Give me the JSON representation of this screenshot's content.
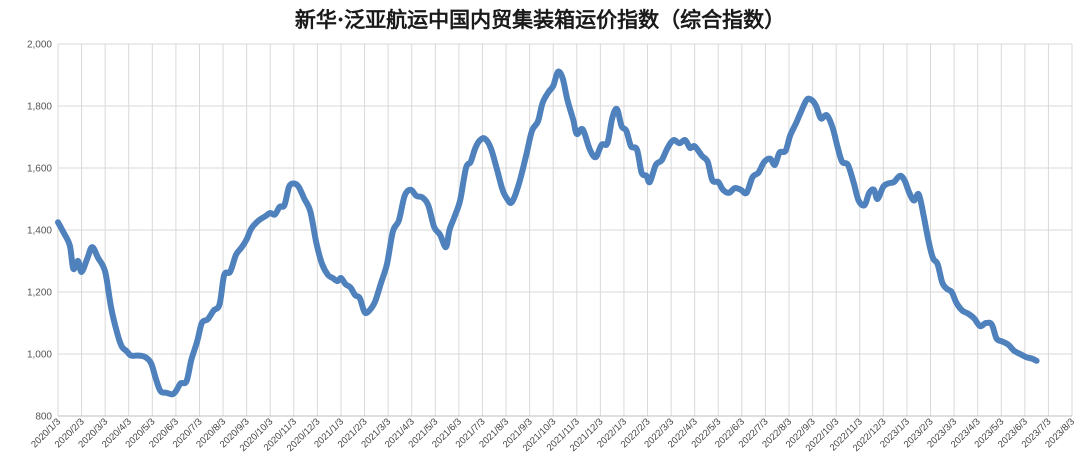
{
  "chart_data": {
    "type": "line",
    "title": "新华·泛亚航运中国内贸集装箱运价指数（综合指数）",
    "xlabel": "",
    "ylabel": "",
    "ylim": [
      800,
      2000
    ],
    "yticks": [
      "800",
      "1,000",
      "1,200",
      "1,400",
      "1,600",
      "1,800",
      "2,000"
    ],
    "grid": true,
    "legend": "none",
    "line_color": "#4F81BD",
    "categories": [
      "2020/1/3",
      "2020/2/3",
      "2020/3/3",
      "2020/4/3",
      "2020/5/3",
      "2020/6/3",
      "2020/7/3",
      "2020/8/3",
      "2020/9/3",
      "2020/10/3",
      "2020/11/3",
      "2020/12/3",
      "2021/1/3",
      "2021/2/3",
      "2021/3/3",
      "2021/4/3",
      "2021/5/3",
      "2021/6/3",
      "2021/7/3",
      "2021/8/3",
      "2021/9/3",
      "2021/10/3",
      "2021/11/3",
      "2021/12/3",
      "2022/1/3",
      "2022/2/3",
      "2022/3/3",
      "2022/4/3",
      "2022/5/3",
      "2022/6/3",
      "2022/7/3",
      "2022/8/3",
      "2022/9/3",
      "2022/10/3",
      "2022/11/3",
      "2022/12/3",
      "2023/1/3",
      "2023/2/3",
      "2023/3/3",
      "2023/4/3",
      "2023/5/3",
      "2023/6/3",
      "2023/7/3",
      "2023/8/3"
    ],
    "series": [
      {
        "values": [
          [
            0,
            1425
          ],
          [
            0.25,
            1390
          ],
          [
            0.5,
            1350
          ],
          [
            0.65,
            1275
          ],
          [
            0.85,
            1300
          ],
          [
            1.0,
            1265
          ],
          [
            1.25,
            1310
          ],
          [
            1.45,
            1345
          ],
          [
            1.7,
            1310
          ],
          [
            2.0,
            1265
          ],
          [
            2.25,
            1150
          ],
          [
            2.5,
            1070
          ],
          [
            2.7,
            1025
          ],
          [
            2.9,
            1010
          ],
          [
            3.1,
            995
          ],
          [
            3.4,
            995
          ],
          [
            3.7,
            990
          ],
          [
            3.95,
            970
          ],
          [
            4.15,
            920
          ],
          [
            4.35,
            880
          ],
          [
            4.6,
            875
          ],
          [
            4.85,
            870
          ],
          [
            5.0,
            880
          ],
          [
            5.2,
            905
          ],
          [
            5.45,
            912
          ],
          [
            5.65,
            980
          ],
          [
            5.9,
            1040
          ],
          [
            6.1,
            1100
          ],
          [
            6.35,
            1112
          ],
          [
            6.6,
            1140
          ],
          [
            6.85,
            1160
          ],
          [
            7.05,
            1255
          ],
          [
            7.3,
            1265
          ],
          [
            7.55,
            1320
          ],
          [
            7.8,
            1345
          ],
          [
            8.0,
            1370
          ],
          [
            8.2,
            1405
          ],
          [
            8.5,
            1430
          ],
          [
            8.8,
            1445
          ],
          [
            9.0,
            1455
          ],
          [
            9.2,
            1450
          ],
          [
            9.4,
            1475
          ],
          [
            9.6,
            1480
          ],
          [
            9.8,
            1540
          ],
          [
            10.0,
            1550
          ],
          [
            10.2,
            1540
          ],
          [
            10.45,
            1500
          ],
          [
            10.7,
            1460
          ],
          [
            10.95,
            1360
          ],
          [
            11.2,
            1290
          ],
          [
            11.45,
            1255
          ],
          [
            11.65,
            1245
          ],
          [
            11.85,
            1235
          ],
          [
            12.0,
            1245
          ],
          [
            12.2,
            1225
          ],
          [
            12.4,
            1215
          ],
          [
            12.6,
            1190
          ],
          [
            12.8,
            1180
          ],
          [
            13.0,
            1135
          ],
          [
            13.2,
            1140
          ],
          [
            13.45,
            1170
          ],
          [
            13.7,
            1230
          ],
          [
            13.95,
            1290
          ],
          [
            14.2,
            1395
          ],
          [
            14.45,
            1430
          ],
          [
            14.7,
            1510
          ],
          [
            14.95,
            1530
          ],
          [
            15.2,
            1510
          ],
          [
            15.45,
            1505
          ],
          [
            15.7,
            1480
          ],
          [
            15.95,
            1410
          ],
          [
            16.2,
            1385
          ],
          [
            16.45,
            1345
          ],
          [
            16.6,
            1400
          ],
          [
            16.8,
            1440
          ],
          [
            17.05,
            1495
          ],
          [
            17.3,
            1600
          ],
          [
            17.5,
            1620
          ],
          [
            17.7,
            1665
          ],
          [
            17.9,
            1690
          ],
          [
            18.1,
            1695
          ],
          [
            18.35,
            1665
          ],
          [
            18.6,
            1600
          ],
          [
            18.85,
            1530
          ],
          [
            19.05,
            1500
          ],
          [
            19.25,
            1490
          ],
          [
            19.55,
            1550
          ],
          [
            19.85,
            1640
          ],
          [
            20.1,
            1720
          ],
          [
            20.35,
            1750
          ],
          [
            20.55,
            1810
          ],
          [
            20.8,
            1845
          ],
          [
            21.0,
            1865
          ],
          [
            21.2,
            1910
          ],
          [
            21.4,
            1890
          ],
          [
            21.6,
            1820
          ],
          [
            21.85,
            1755
          ],
          [
            22.0,
            1710
          ],
          [
            22.25,
            1725
          ],
          [
            22.55,
            1660
          ],
          [
            22.8,
            1635
          ],
          [
            23.05,
            1675
          ],
          [
            23.3,
            1680
          ],
          [
            23.5,
            1760
          ],
          [
            23.7,
            1790
          ],
          [
            23.9,
            1735
          ],
          [
            24.1,
            1720
          ],
          [
            24.3,
            1670
          ],
          [
            24.55,
            1660
          ],
          [
            24.75,
            1585
          ],
          [
            24.95,
            1575
          ],
          [
            25.1,
            1555
          ],
          [
            25.35,
            1610
          ],
          [
            25.6,
            1625
          ],
          [
            25.85,
            1665
          ],
          [
            26.1,
            1690
          ],
          [
            26.35,
            1680
          ],
          [
            26.6,
            1690
          ],
          [
            26.8,
            1665
          ],
          [
            27.0,
            1670
          ],
          [
            27.3,
            1640
          ],
          [
            27.55,
            1620
          ],
          [
            27.75,
            1560
          ],
          [
            28.0,
            1555
          ],
          [
            28.2,
            1530
          ],
          [
            28.45,
            1520
          ],
          [
            28.7,
            1535
          ],
          [
            28.95,
            1530
          ],
          [
            29.2,
            1520
          ],
          [
            29.45,
            1570
          ],
          [
            29.7,
            1585
          ],
          [
            29.95,
            1620
          ],
          [
            30.2,
            1630
          ],
          [
            30.4,
            1610
          ],
          [
            30.6,
            1650
          ],
          [
            30.85,
            1655
          ],
          [
            31.05,
            1705
          ],
          [
            31.3,
            1745
          ],
          [
            31.5,
            1780
          ],
          [
            31.75,
            1820
          ],
          [
            31.95,
            1820
          ],
          [
            32.15,
            1800
          ],
          [
            32.35,
            1760
          ],
          [
            32.6,
            1770
          ],
          [
            32.85,
            1730
          ],
          [
            33.05,
            1670
          ],
          [
            33.25,
            1620
          ],
          [
            33.5,
            1610
          ],
          [
            33.75,
            1550
          ],
          [
            33.95,
            1495
          ],
          [
            34.2,
            1480
          ],
          [
            34.4,
            1520
          ],
          [
            34.6,
            1530
          ],
          [
            34.75,
            1500
          ],
          [
            35.0,
            1540
          ],
          [
            35.2,
            1550
          ],
          [
            35.45,
            1555
          ],
          [
            35.7,
            1575
          ],
          [
            35.9,
            1560
          ],
          [
            36.1,
            1520
          ],
          [
            36.3,
            1495
          ],
          [
            36.5,
            1515
          ],
          [
            36.7,
            1450
          ],
          [
            36.9,
            1370
          ],
          [
            37.1,
            1310
          ],
          [
            37.3,
            1290
          ],
          [
            37.5,
            1230
          ],
          [
            37.7,
            1210
          ],
          [
            37.9,
            1200
          ],
          [
            38.1,
            1165
          ],
          [
            38.35,
            1140
          ],
          [
            38.6,
            1130
          ],
          [
            38.85,
            1115
          ],
          [
            39.1,
            1090
          ],
          [
            39.35,
            1100
          ],
          [
            39.6,
            1095
          ],
          [
            39.8,
            1050
          ],
          [
            40.05,
            1040
          ],
          [
            40.3,
            1030
          ],
          [
            40.55,
            1010
          ],
          [
            40.8,
            1000
          ],
          [
            41.05,
            990
          ],
          [
            41.3,
            985
          ],
          [
            41.5,
            978
          ]
        ]
      }
    ]
  }
}
